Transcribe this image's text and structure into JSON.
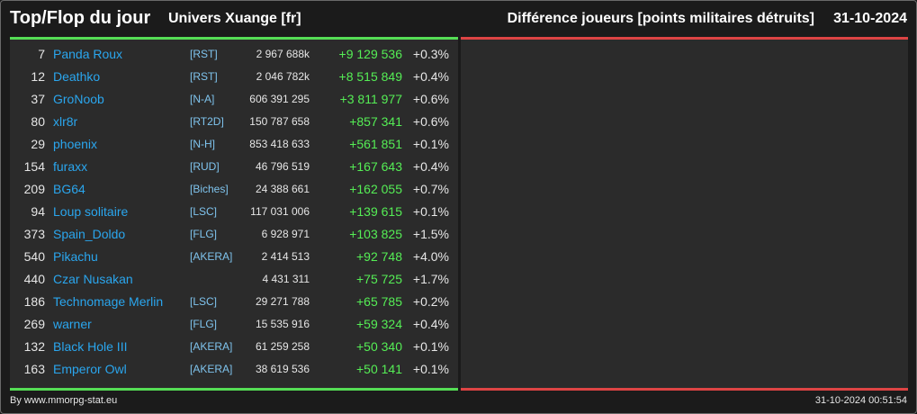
{
  "header": {
    "title": "Top/Flop du jour",
    "universe": "Univers Xuange [fr]",
    "metric": "Différence joueurs [points militaires détruits]",
    "date": "31-10-2024"
  },
  "colors": {
    "background": "#1b1b1b",
    "panel": "#2b2b2b",
    "top_bar": "#55dd55",
    "flop_bar": "#dd4444",
    "player_link": "#2aa6ee",
    "alliance": "#7fc4ee",
    "positive_diff": "#55ee55"
  },
  "top": [
    {
      "rank": "7",
      "name": "Panda Roux",
      "alliance": "[RST]",
      "points": "2 967 688k",
      "diff": "+9 129 536",
      "pct": "+0.3%"
    },
    {
      "rank": "12",
      "name": "Deathko",
      "alliance": "[RST]",
      "points": "2 046 782k",
      "diff": "+8 515 849",
      "pct": "+0.4%"
    },
    {
      "rank": "37",
      "name": "GroNoob",
      "alliance": "[N-A]",
      "points": "606 391 295",
      "diff": "+3 811 977",
      "pct": "+0.6%"
    },
    {
      "rank": "80",
      "name": "xlr8r",
      "alliance": "[RT2D]",
      "points": "150 787 658",
      "diff": "+857 341",
      "pct": "+0.6%"
    },
    {
      "rank": "29",
      "name": "phoenix",
      "alliance": "[N-H]",
      "points": "853 418 633",
      "diff": "+561 851",
      "pct": "+0.1%"
    },
    {
      "rank": "154",
      "name": "furaxx",
      "alliance": "[RUD]",
      "points": "46 796 519",
      "diff": "+167 643",
      "pct": "+0.4%"
    },
    {
      "rank": "209",
      "name": "BG64",
      "alliance": "[Biches]",
      "points": "24 388 661",
      "diff": "+162 055",
      "pct": "+0.7%"
    },
    {
      "rank": "94",
      "name": "Loup solitaire",
      "alliance": "[LSC]",
      "points": "117 031 006",
      "diff": "+139 615",
      "pct": "+0.1%"
    },
    {
      "rank": "373",
      "name": "Spain_Doldo",
      "alliance": "[FLG]",
      "points": "6 928 971",
      "diff": "+103 825",
      "pct": "+1.5%"
    },
    {
      "rank": "540",
      "name": "Pikachu",
      "alliance": "[AKERA]",
      "points": "2 414 513",
      "diff": "+92 748",
      "pct": "+4.0%"
    },
    {
      "rank": "440",
      "name": "Czar Nusakan",
      "alliance": "",
      "points": "4 431 311",
      "diff": "+75 725",
      "pct": "+1.7%"
    },
    {
      "rank": "186",
      "name": "Technomage Merlin",
      "alliance": "[LSC]",
      "points": "29 271 788",
      "diff": "+65 785",
      "pct": "+0.2%"
    },
    {
      "rank": "269",
      "name": "warner",
      "alliance": "[FLG]",
      "points": "15 535 916",
      "diff": "+59 324",
      "pct": "+0.4%"
    },
    {
      "rank": "132",
      "name": "Black Hole III",
      "alliance": "[AKERA]",
      "points": "61 259 258",
      "diff": "+50 340",
      "pct": "+0.1%"
    },
    {
      "rank": "163",
      "name": "Emperor Owl",
      "alliance": "[AKERA]",
      "points": "38 619 536",
      "diff": "+50 141",
      "pct": "+0.1%"
    }
  ],
  "footer": {
    "credit": "By www.mmorpg-stat.eu",
    "timestamp": "31-10-2024 00:51:54"
  }
}
